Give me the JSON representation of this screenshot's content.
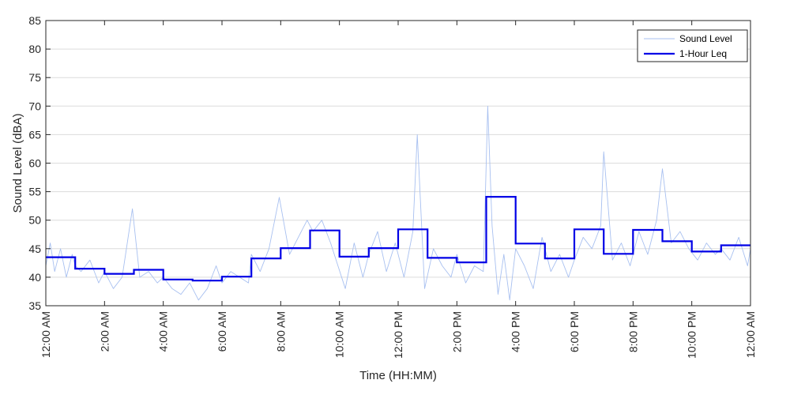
{
  "chart_data": {
    "type": "line",
    "xlabel": "Time (HH:MM)",
    "ylabel": "Sound Level (dBA)",
    "xlim": [
      0,
      24
    ],
    "ylim": [
      35,
      85
    ],
    "y_ticks": [
      35,
      40,
      45,
      50,
      55,
      60,
      65,
      70,
      75,
      80,
      85
    ],
    "x_ticks": [
      {
        "hour": 0,
        "label": "12:00 AM"
      },
      {
        "hour": 2,
        "label": "2:00 AM"
      },
      {
        "hour": 4,
        "label": "4:00 AM"
      },
      {
        "hour": 6,
        "label": "6:00 AM"
      },
      {
        "hour": 8,
        "label": "8:00 AM"
      },
      {
        "hour": 10,
        "label": "10:00 AM"
      },
      {
        "hour": 12,
        "label": "12:00 PM"
      },
      {
        "hour": 14,
        "label": "2:00 PM"
      },
      {
        "hour": 16,
        "label": "4:00 PM"
      },
      {
        "hour": 18,
        "label": "6:00 PM"
      },
      {
        "hour": 20,
        "label": "8:00 PM"
      },
      {
        "hour": 22,
        "label": "10:00 PM"
      },
      {
        "hour": 24,
        "label": "12:00 AM"
      }
    ],
    "grid": "horizontal",
    "legend_position": "top-right",
    "series": [
      {
        "name": "Sound Level",
        "color": "#a8c0f0",
        "style": "thin-line",
        "hours": [
          0,
          0.15,
          0.3,
          0.5,
          0.7,
          0.9,
          1.0,
          1.2,
          1.5,
          1.8,
          2.0,
          2.3,
          2.6,
          2.95,
          3.2,
          3.5,
          3.8,
          4.0,
          4.3,
          4.6,
          4.9,
          5.2,
          5.5,
          5.8,
          6.0,
          6.3,
          6.6,
          6.9,
          7.0,
          7.3,
          7.6,
          7.95,
          8.3,
          8.6,
          8.9,
          9.1,
          9.4,
          9.7,
          9.95,
          10.2,
          10.5,
          10.8,
          11.0,
          11.3,
          11.6,
          11.9,
          12.2,
          12.5,
          12.65,
          12.9,
          13.2,
          13.5,
          13.8,
          14.0,
          14.3,
          14.6,
          14.9,
          15.05,
          15.2,
          15.4,
          15.6,
          15.8,
          16.0,
          16.3,
          16.6,
          16.9,
          17.2,
          17.5,
          17.8,
          18.0,
          18.3,
          18.6,
          18.9,
          19.0,
          19.3,
          19.6,
          19.9,
          20.2,
          20.5,
          20.8,
          21.0,
          21.3,
          21.6,
          21.9,
          22.2,
          22.5,
          22.8,
          23.0,
          23.3,
          23.6,
          23.9,
          24.0
        ],
        "values": [
          42,
          46,
          41,
          45,
          40,
          44,
          42,
          41,
          43,
          39,
          41,
          38,
          40,
          52,
          40,
          41,
          39,
          40,
          38,
          37,
          39,
          36,
          38,
          42,
          39,
          41,
          40,
          39,
          44,
          41,
          45,
          54,
          44,
          47,
          50,
          48,
          50,
          46,
          42,
          38,
          46,
          40,
          44,
          48,
          41,
          46,
          40,
          48,
          65,
          38,
          45,
          42,
          40,
          44,
          39,
          42,
          41,
          70,
          49,
          37,
          44,
          36,
          45,
          42,
          38,
          47,
          41,
          44,
          40,
          43,
          47,
          45,
          49,
          62,
          43,
          46,
          42,
          48,
          44,
          50,
          59,
          46,
          48,
          45,
          43,
          46,
          44,
          45,
          43,
          47,
          42,
          45
        ]
      },
      {
        "name": "1-Hour Leq",
        "color": "#0000e6",
        "style": "step",
        "hourly_values": [
          43.5,
          41.5,
          40.6,
          41.3,
          39.6,
          39.4,
          40.1,
          43.3,
          45.1,
          48.2,
          43.6,
          45.1,
          48.4,
          43.4,
          42.6,
          54.1,
          45.9,
          43.3,
          48.4,
          44.1,
          48.3,
          46.3,
          44.5,
          45.6
        ]
      }
    ]
  }
}
